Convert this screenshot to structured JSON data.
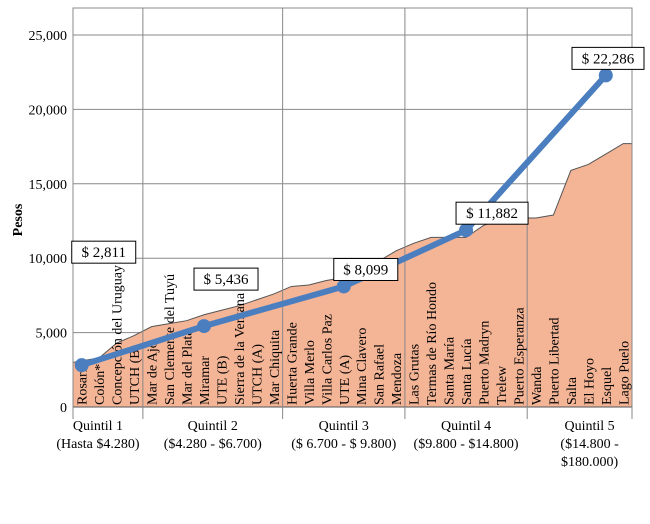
{
  "chart_data": {
    "type": "area+line",
    "ylabel": "Pesos",
    "ylim": [
      0,
      25000
    ],
    "yticks": [
      "0",
      "5,000",
      "10,000",
      "15,000",
      "20,000",
      "25,000"
    ],
    "ytick_values": [
      0,
      5000,
      10000,
      15000,
      20000,
      25000
    ],
    "colors": {
      "area": "#f4b496",
      "area_stroke": "#555555",
      "line": "#4a7ebf",
      "grid": "#888888"
    },
    "categories": [
      "Rosario",
      "Colón*",
      "Concepción del Uruguay",
      "UTCH (B)",
      "Mar de Ajó",
      "San Clemente del Tuyú",
      "Mar del Plata",
      "Miramar",
      "UTE (B)",
      "Sierra de la Ventana",
      "UTCH (A)",
      "Mar Chiquita",
      "Huerta Grande",
      "Villa Merlo",
      "Villa Carlos Paz",
      "UTE (A)",
      "Mina Clavero",
      "San Rafael",
      "Mendoza",
      "Las Grutas",
      "Termas de Río Hondo",
      "Santa María",
      "Santa Lucía",
      "Puerto Madryn",
      "Trelew",
      "Puerto Esperanza",
      "Wanda",
      "Puerto Libertad",
      "Salta",
      "El Hoyo",
      "Esquel",
      "Lago Puelo"
    ],
    "area_values": [
      3000,
      3300,
      4300,
      4800,
      5400,
      5600,
      5800,
      6200,
      6500,
      6800,
      7200,
      7600,
      8100,
      8200,
      8500,
      8700,
      9000,
      9800,
      10500,
      11000,
      11400,
      11400,
      11400,
      12200,
      12600,
      12700,
      12700,
      12900,
      15900,
      16300,
      17000,
      17700
    ],
    "quintile_line": {
      "category_index": [
        0,
        7,
        15,
        22,
        30
      ],
      "values": [
        2811,
        5436,
        8099,
        11882,
        22286
      ],
      "labels": [
        "$ 2,811",
        "$ 5,436",
        "$ 8,099",
        "$ 11,882",
        "$ 22,286"
      ]
    },
    "quintile_boundaries": [
      0,
      4,
      12,
      19,
      26,
      32
    ],
    "quintiles": [
      {
        "name": "Quintil 1",
        "range": "(Hasta $4.280)"
      },
      {
        "name": "Quintil 2",
        "range": "($4.280 - $6.700)"
      },
      {
        "name": "Quintil 3",
        "range": "($ 6.700 - $ 9.800)"
      },
      {
        "name": "Quintil 4",
        "range": "($9.800 - $14.800)"
      },
      {
        "name": "Quintil 5",
        "range": "($14.800 -",
        "range2": "$180.000)"
      }
    ]
  }
}
